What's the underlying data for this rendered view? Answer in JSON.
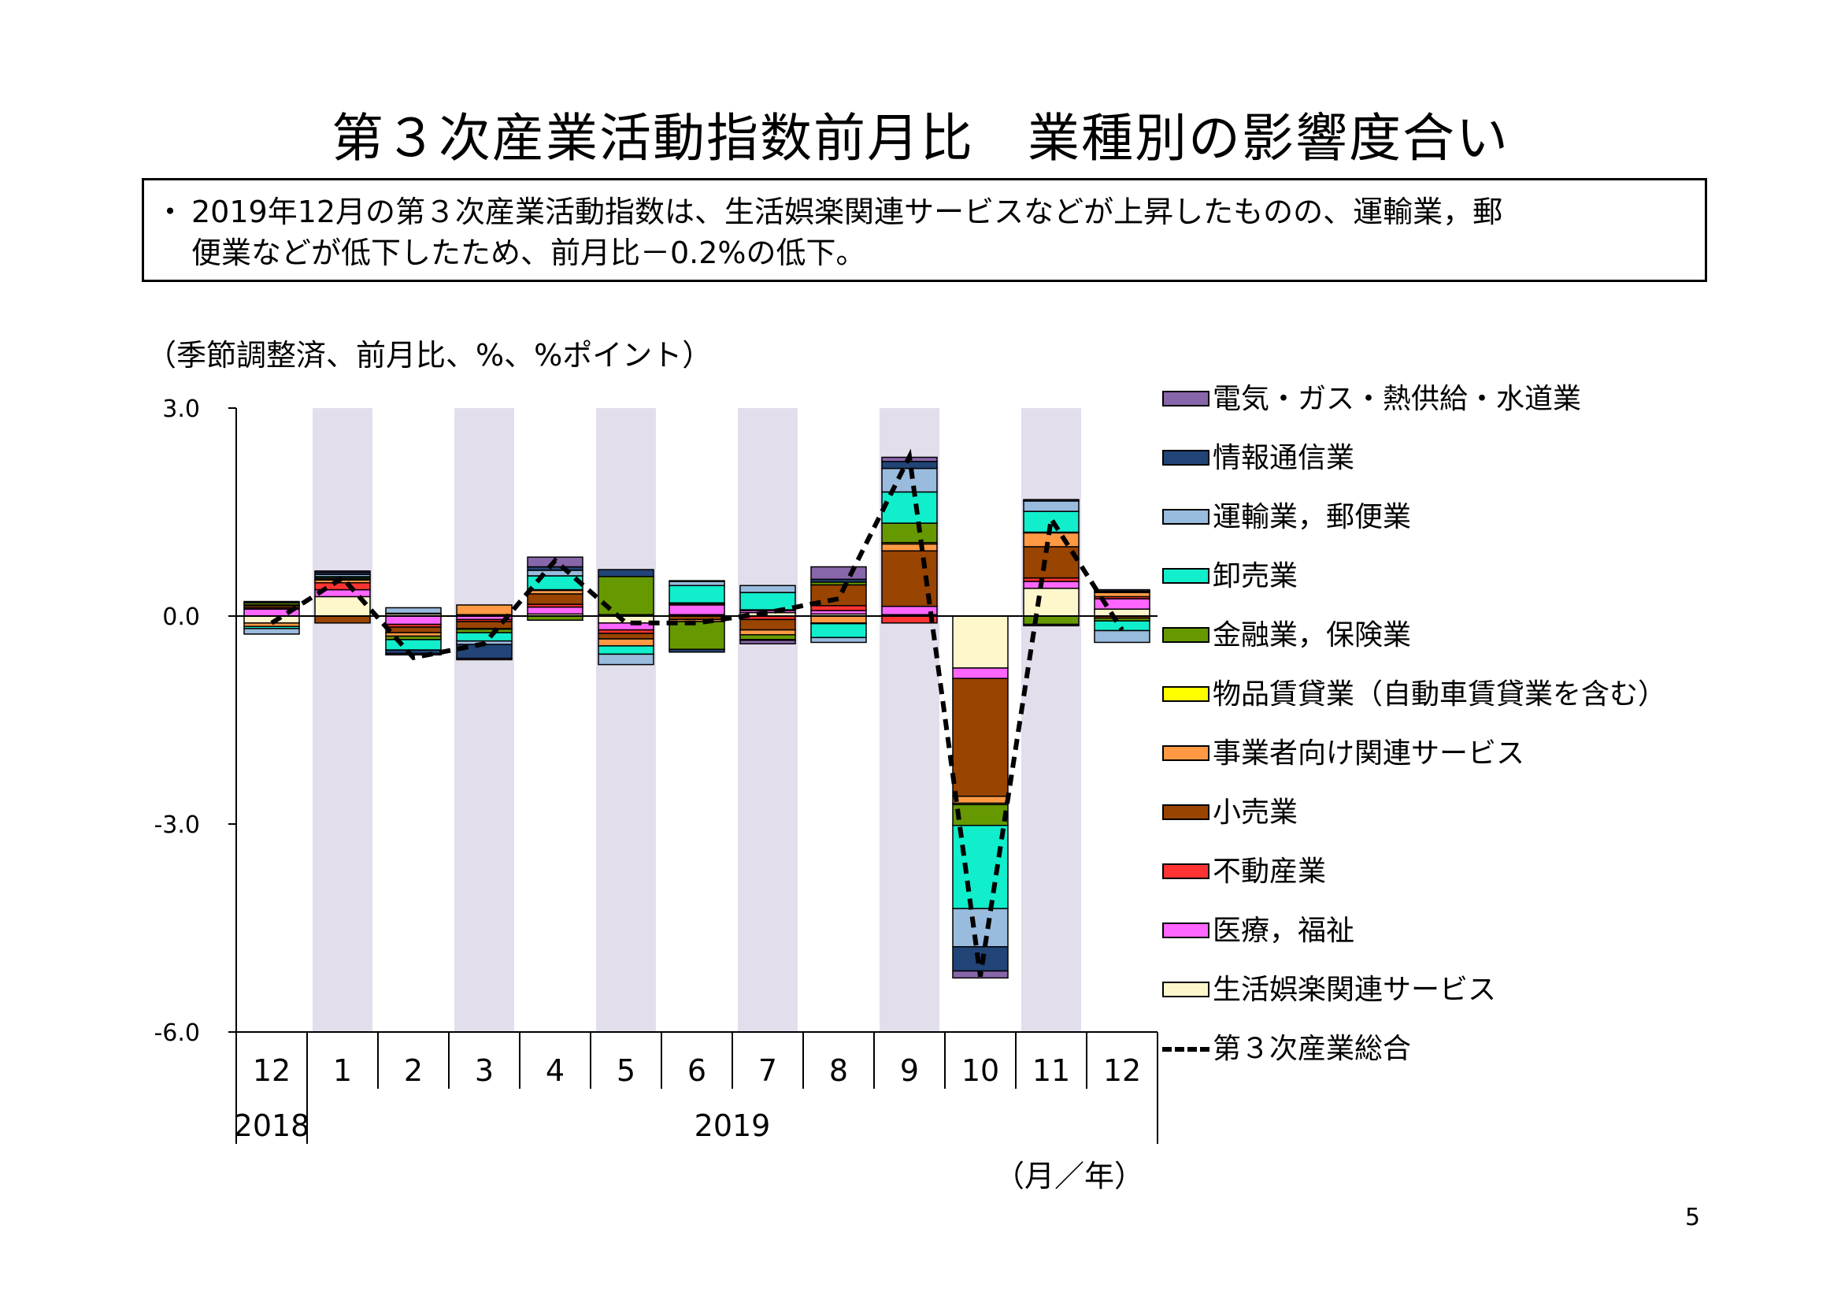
{
  "title": "第３次産業活動指数前月比　業種別の影響度合い",
  "summary": {
    "bullet": "・",
    "line1": "2019年12月の第３次産業活動指数は、生活娯楽関連サービスなどが上昇したものの、運輸業，郵",
    "line2": "便業などが低下したため、前月比－0.2%の低下。"
  },
  "note": "（季節調整済、前月比、%、%ポイント）",
  "page_number": "5",
  "colors": {
    "shading": "#e3deec",
    "line": "#000000"
  },
  "chart_data": {
    "type": "bar",
    "stacked": true,
    "title": "第３次産業活動指数前月比　業種別の影響度合い",
    "ylabel": "（季節調整済、前月比、%、%ポイント）",
    "xlabel": "（月／年）",
    "ylim": [
      -6.0,
      3.0
    ],
    "yticks": [
      "3.0",
      "0.0",
      "-3.0",
      "-6.0"
    ],
    "ytick_values": [
      3.0,
      0.0,
      -3.0,
      -6.0
    ],
    "categories": [
      "12",
      "1",
      "2",
      "3",
      "4",
      "5",
      "6",
      "7",
      "8",
      "9",
      "10",
      "11",
      "12"
    ],
    "year_labels": [
      {
        "label": "2018",
        "from": 0,
        "to": 0
      },
      {
        "label": "2019",
        "from": 1,
        "to": 12
      }
    ],
    "shaded_categories": [
      1,
      3,
      5,
      7,
      9,
      11
    ],
    "legend_position": "right",
    "series": [
      {
        "name": "生活娯楽関連サービス",
        "color": "#fff7cc",
        "values": [
          -0.1,
          0.28,
          0.03,
          0.02,
          0.03,
          -0.1,
          0.02,
          0.05,
          0.03,
          0.02,
          -0.75,
          0.4,
          0.1
        ]
      },
      {
        "name": "医療，福祉",
        "color": "#ff66ff",
        "values": [
          0.1,
          0.1,
          -0.12,
          -0.05,
          0.1,
          -0.1,
          0.14,
          0.03,
          0.05,
          0.12,
          -0.15,
          0.1,
          0.15
        ]
      },
      {
        "name": "不動産業",
        "color": "#ff3333",
        "values": [
          0.02,
          0.1,
          -0.04,
          -0.03,
          0.04,
          -0.05,
          0.02,
          -0.05,
          0.07,
          -0.1,
          0.0,
          0.05,
          0.03
        ]
      },
      {
        "name": "小売業",
        "color": "#994400",
        "values": [
          0.03,
          -0.1,
          -0.08,
          -0.1,
          0.15,
          -0.08,
          -0.05,
          -0.15,
          0.3,
          0.8,
          -1.7,
          0.45,
          -0.03
        ]
      },
      {
        "name": "事業者向け関連サービス",
        "color": "#ff9944",
        "values": [
          -0.05,
          0.04,
          -0.05,
          0.14,
          0.05,
          -0.1,
          -0.03,
          -0.07,
          -0.1,
          0.1,
          -0.1,
          0.2,
          0.06
        ]
      },
      {
        "name": "物品賃貸業（自動車賃貸業を含む）",
        "color": "#ffff00",
        "values": [
          0.01,
          0.01,
          0.01,
          -0.01,
          0.01,
          0.02,
          0.01,
          0.01,
          -0.01,
          0.02,
          -0.02,
          0.01,
          0.01
        ]
      },
      {
        "name": "金融業，保険業",
        "color": "#669900",
        "values": [
          0.03,
          0.02,
          -0.05,
          -0.05,
          -0.06,
          0.55,
          -0.4,
          -0.07,
          0.04,
          0.28,
          -0.3,
          -0.12,
          -0.04
        ]
      },
      {
        "name": "卸売業",
        "color": "#11eecc",
        "values": [
          -0.03,
          0.02,
          -0.15,
          -0.12,
          0.2,
          -0.12,
          0.25,
          0.25,
          -0.2,
          0.45,
          -1.2,
          0.3,
          -0.14
        ]
      },
      {
        "name": "運輸業，郵便業",
        "color": "#99bbdd",
        "values": [
          -0.08,
          0.03,
          0.08,
          -0.05,
          0.08,
          -0.15,
          0.06,
          0.1,
          -0.07,
          0.34,
          -0.55,
          0.15,
          -0.17
        ]
      },
      {
        "name": "情報通信業",
        "color": "#224477",
        "values": [
          0.02,
          0.03,
          -0.05,
          -0.2,
          0.05,
          0.1,
          -0.04,
          -0.01,
          0.04,
          0.1,
          -0.35,
          0.02,
          0.01
        ]
      },
      {
        "name": "電気・ガス・熱供給・水道業",
        "color": "#8866aa",
        "values": [
          0.0,
          0.02,
          -0.02,
          -0.02,
          0.14,
          0.0,
          0.01,
          -0.05,
          0.18,
          0.06,
          -0.1,
          -0.02,
          0.02
        ]
      }
    ],
    "total": {
      "name": "第３次産業総合",
      "values": [
        -0.1,
        0.55,
        -0.6,
        -0.4,
        0.8,
        -0.1,
        -0.1,
        0.05,
        0.25,
        2.3,
        -5.2,
        1.4,
        -0.2
      ]
    },
    "legend_order": [
      "電気・ガス・熱供給・水道業",
      "情報通信業",
      "運輸業，郵便業",
      "卸売業",
      "金融業，保険業",
      "物品賃貸業（自動車賃貸業を含む）",
      "事業者向け関連サービス",
      "小売業",
      "不動産業",
      "医療，福祉",
      "生活娯楽関連サービス",
      "第３次産業総合"
    ]
  }
}
